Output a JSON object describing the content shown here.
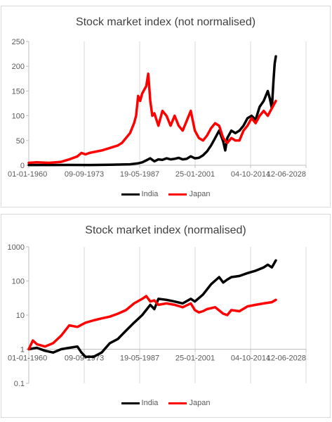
{
  "chart_data": [
    {
      "type": "line",
      "title": "Stock market index (not normalised)",
      "x_ticks": [
        "01-01-1960",
        "09-09-1973",
        "19-05-1987",
        "25-01-2001",
        "04-10-2014",
        "12-06-2028"
      ],
      "x_range": [
        "1960-01-01",
        "2028-06-12"
      ],
      "y_ticks": [
        "0",
        "50",
        "100",
        "150",
        "200",
        "250"
      ],
      "ylim": [
        0,
        250
      ],
      "y_scale": "linear",
      "grid": "vertical lines at each x tick",
      "legend_position": "bottom",
      "series": [
        {
          "name": "India",
          "color": "#000000",
          "x": [
            1960,
            1965,
            1970,
            1975,
            1980,
            1985,
            1987,
            1988,
            1989,
            1990,
            1991,
            1992,
            1993,
            1994,
            1995,
            1996,
            1997,
            1998,
            1999,
            2000,
            2001,
            2002,
            2003,
            2004,
            2005,
            2006,
            2007,
            2008,
            2008.5,
            2009,
            2010,
            2011,
            2012,
            2013,
            2014,
            2015,
            2016,
            2017,
            2018,
            2019,
            2019.5,
            2020,
            2020.4,
            2020.7,
            2021
          ],
          "y": [
            0.5,
            0.6,
            0.7,
            0.6,
            1,
            2,
            4,
            6,
            10,
            14,
            8,
            12,
            11,
            14,
            12,
            13,
            15,
            12,
            13,
            18,
            14,
            15,
            20,
            28,
            40,
            55,
            70,
            48,
            30,
            55,
            70,
            65,
            70,
            80,
            95,
            100,
            92,
            118,
            130,
            150,
            135,
            115,
            170,
            205,
            220
          ]
        },
        {
          "name": "Japan",
          "color": "#ff0000",
          "x": [
            1960,
            1962,
            1965,
            1968,
            1970,
            1972,
            1973,
            1974,
            1975,
            1978,
            1980,
            1982,
            1983,
            1984,
            1985,
            1986,
            1986.5,
            1987,
            1987.5,
            1988,
            1989,
            1989.5,
            1990,
            1990.5,
            1991,
            1992,
            1993,
            1994,
            1995,
            1996,
            1997,
            1998,
            1999,
            2000,
            2001,
            2002,
            2003,
            2004,
            2005,
            2006,
            2007,
            2008,
            2009,
            2010,
            2011,
            2012,
            2013,
            2014,
            2015,
            2016,
            2017,
            2018,
            2019,
            2020,
            2021
          ],
          "y": [
            5,
            6,
            5,
            7,
            12,
            18,
            25,
            22,
            25,
            30,
            35,
            40,
            45,
            55,
            65,
            85,
            100,
            140,
            130,
            145,
            160,
            185,
            130,
            100,
            105,
            80,
            110,
            100,
            80,
            100,
            80,
            70,
            90,
            110,
            70,
            55,
            50,
            60,
            75,
            85,
            80,
            55,
            45,
            55,
            50,
            50,
            70,
            80,
            95,
            85,
            100,
            110,
            100,
            115,
            130
          ]
        }
      ]
    },
    {
      "type": "line",
      "title": "Stock market index (normalised)",
      "x_ticks": [
        "01-01-1960",
        "09-09-1973",
        "19-05-1987",
        "25-01-2001",
        "04-10-2014",
        "12-06-2028"
      ],
      "x_range": [
        "1960-01-01",
        "2028-06-12"
      ],
      "y_ticks": [
        "0.1",
        "1",
        "10",
        "100",
        "1000"
      ],
      "ylim": [
        0.1,
        1000
      ],
      "y_scale": "log",
      "x_axis_crosses_at": 1,
      "grid": "vertical lines at each x tick",
      "legend_position": "bottom",
      "series": [
        {
          "name": "India",
          "color": "#000000",
          "x": [
            1960,
            1962,
            1964,
            1966,
            1968,
            1970,
            1972,
            1973,
            1974,
            1976,
            1978,
            1980,
            1982,
            1984,
            1986,
            1988,
            1990,
            1991,
            1992,
            1994,
            1996,
            1998,
            2000,
            2001,
            2003,
            2005,
            2007,
            2008,
            2009,
            2010,
            2012,
            2014,
            2016,
            2018,
            2019,
            2020,
            2021
          ],
          "y": [
            1,
            1.1,
            0.9,
            0.8,
            1.0,
            1.1,
            1.2,
            0.8,
            0.6,
            0.6,
            0.8,
            1.5,
            2,
            3.5,
            6,
            10,
            20,
            15,
            30,
            28,
            25,
            22,
            30,
            25,
            40,
            80,
            130,
            90,
            110,
            130,
            140,
            170,
            200,
            250,
            300,
            250,
            400
          ]
        },
        {
          "name": "Japan",
          "color": "#ff0000",
          "x": [
            1960,
            1961,
            1962,
            1964,
            1966,
            1968,
            1970,
            1972,
            1974,
            1976,
            1978,
            1980,
            1982,
            1984,
            1986,
            1988,
            1989,
            1990,
            1991,
            1992,
            1994,
            1996,
            1998,
            2000,
            2001,
            2002,
            2003,
            2004,
            2006,
            2008,
            2009,
            2010,
            2012,
            2014,
            2016,
            2018,
            2020,
            2021
          ],
          "y": [
            1,
            1.8,
            1.4,
            1.2,
            1.5,
            2.5,
            5,
            4.5,
            6,
            7,
            8,
            9,
            11,
            14,
            22,
            30,
            36,
            25,
            27,
            20,
            22,
            20,
            17,
            22,
            14,
            12,
            13,
            15,
            17,
            11,
            10,
            14,
            13,
            18,
            20,
            22,
            24,
            28
          ]
        }
      ]
    }
  ]
}
